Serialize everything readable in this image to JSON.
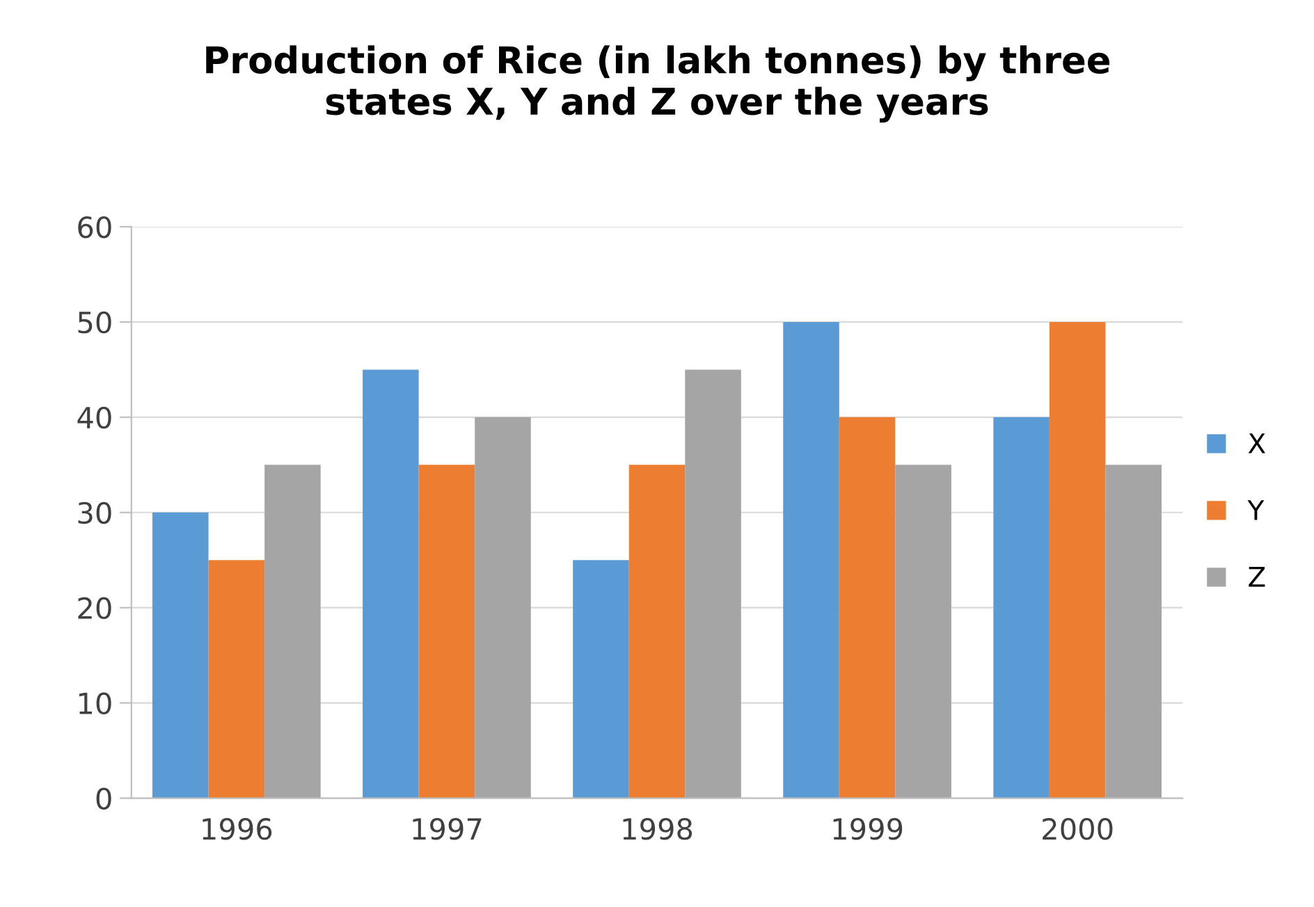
{
  "chart_data": {
    "type": "bar",
    "title": "Production of Rice (in lakh tonnes) by three\nstates X, Y and Z over the years",
    "categories": [
      "1996",
      "1997",
      "1998",
      "1999",
      "2000"
    ],
    "series": [
      {
        "name": "X",
        "color": "#5b9bd5",
        "values": [
          30,
          45,
          25,
          50,
          40
        ]
      },
      {
        "name": "Y",
        "color": "#ed7d31",
        "values": [
          25,
          35,
          35,
          40,
          50
        ]
      },
      {
        "name": "Z",
        "color": "#a5a5a5",
        "values": [
          35,
          40,
          45,
          35,
          35
        ]
      }
    ],
    "ylim": [
      0,
      60
    ],
    "yticks": [
      0,
      10,
      20,
      30,
      40,
      50,
      60
    ],
    "grid": "y",
    "legend": "right"
  }
}
